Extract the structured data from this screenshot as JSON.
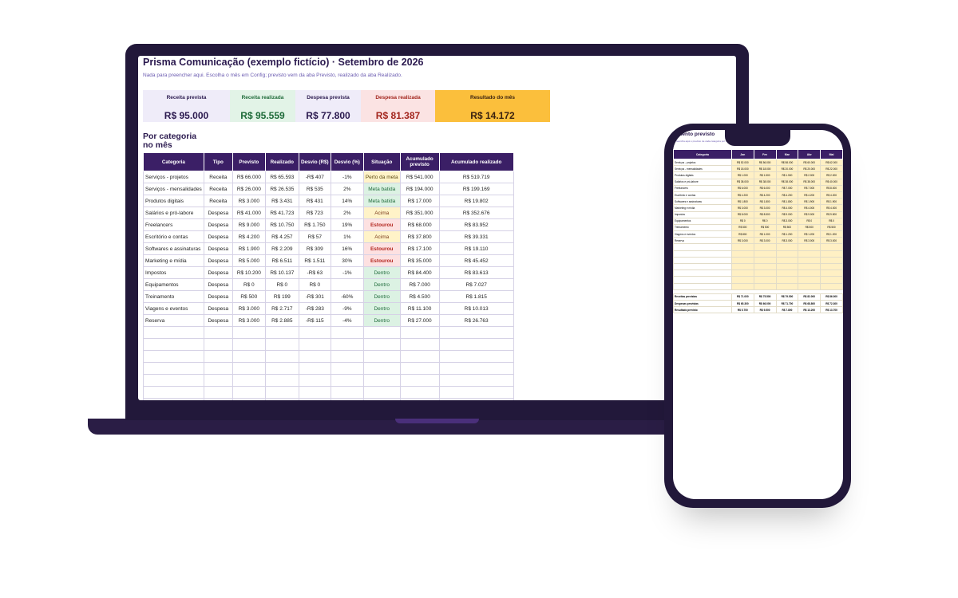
{
  "laptop": {
    "title": "Prisma Comunicação (exemplo fictício) · Setembro de 2026",
    "subtitle": "Nada para preencher aqui. Escolha o mês em Config; previsto vem da aba Previsto, realizado da aba Realizado.",
    "kpis": [
      {
        "label": "Receita prevista",
        "value": "R$ 95.000"
      },
      {
        "label": "Receita realizada",
        "value": "R$ 95.559"
      },
      {
        "label": "Despesa prevista",
        "value": "R$ 77.800"
      },
      {
        "label": "Despesa realizada",
        "value": "R$ 81.387"
      },
      {
        "label": "Resultado do mês",
        "value": "R$ 14.172"
      }
    ],
    "section_title": [
      "Por categoria",
      "no mês"
    ],
    "table": {
      "columns": [
        "Categoria",
        "Tipo",
        "Previsto",
        "Realizado",
        "Desvio (R$)",
        "Desvio (%)",
        "Situação",
        "Acumulado previsto",
        "Acumulado realizado"
      ],
      "rows": [
        [
          "Serviços - projetos",
          "Receita",
          "R$ 66.000",
          "R$ 65.593",
          "-R$ 407",
          "-1%",
          "Perto da meta",
          "R$ 541.000",
          "R$ 519.719"
        ],
        [
          "Serviços - mensalidades",
          "Receita",
          "R$ 26.000",
          "R$ 26.535",
          "R$ 535",
          "2%",
          "Meta batida",
          "R$ 194.000",
          "R$ 199.169"
        ],
        [
          "Produtos digitais",
          "Receita",
          "R$ 3.000",
          "R$ 3.431",
          "R$ 431",
          "14%",
          "Meta batida",
          "R$ 17.000",
          "R$ 19.802"
        ],
        [
          "Salários e pró-labore",
          "Despesa",
          "R$ 41.000",
          "R$ 41.723",
          "R$ 723",
          "2%",
          "Acima",
          "R$ 351.000",
          "R$ 352.676"
        ],
        [
          "Freelancers",
          "Despesa",
          "R$ 9.000",
          "R$ 10.750",
          "R$ 1.750",
          "19%",
          "Estourou",
          "R$ 68.000",
          "R$ 83.952"
        ],
        [
          "Escritório e contas",
          "Despesa",
          "R$ 4.200",
          "R$ 4.257",
          "R$ 57",
          "1%",
          "Acima",
          "R$ 37.800",
          "R$ 39.331"
        ],
        [
          "Softwares e assinaturas",
          "Despesa",
          "R$ 1.900",
          "R$ 2.209",
          "R$ 309",
          "16%",
          "Estourou",
          "R$ 17.100",
          "R$ 19.110"
        ],
        [
          "Marketing e mídia",
          "Despesa",
          "R$ 5.000",
          "R$ 6.511",
          "R$ 1.511",
          "30%",
          "Estourou",
          "R$ 35.000",
          "R$ 45.452"
        ],
        [
          "Impostos",
          "Despesa",
          "R$ 10.200",
          "R$ 10.137",
          "-R$ 63",
          "-1%",
          "Dentro",
          "R$ 84.400",
          "R$ 83.613"
        ],
        [
          "Equipamentos",
          "Despesa",
          "R$ 0",
          "R$ 0",
          "R$ 0",
          null,
          "Dentro",
          "R$ 7.000",
          "R$ 7.027"
        ],
        [
          "Treinamento",
          "Despesa",
          "R$ 500",
          "R$ 199",
          "-R$ 301",
          "-60%",
          "Dentro",
          "R$ 4.500",
          "R$ 1.815"
        ],
        [
          "Viagens e eventos",
          "Despesa",
          "R$ 3.000",
          "R$ 2.717",
          "-R$ 283",
          "-9%",
          "Dentro",
          "R$ 11.100",
          "R$ 10.013"
        ],
        [
          "Reserva",
          "Despesa",
          "R$ 3.000",
          "R$ 2.885",
          "-R$ 115",
          "-4%",
          "Dentro",
          "R$ 27.000",
          "R$ 26.763"
        ]
      ],
      "status_colors": [
        {
          "bg": "#fff3c8",
          "fg": "#5b4a12"
        },
        {
          "bg": "#dcf2e3",
          "fg": "#1f6b3a"
        },
        {
          "bg": "#dcf2e3",
          "fg": "#1f6b3a"
        },
        {
          "bg": "#fff3c8",
          "fg": "#7a3b1c"
        },
        {
          "bg": "#fde1e1",
          "fg": "#b3261e"
        },
        {
          "bg": "#fff3c8",
          "fg": "#7a3b1c"
        },
        {
          "bg": "#fde1e1",
          "fg": "#b3261e"
        },
        {
          "bg": "#fde1e1",
          "fg": "#b3261e"
        },
        {
          "bg": "#dcf2e3",
          "fg": "#1f6b3a"
        },
        {
          "bg": "#dcf2e3",
          "fg": "#1f6b3a"
        },
        {
          "bg": "#dcf2e3",
          "fg": "#1f6b3a"
        },
        {
          "bg": "#dcf2e3",
          "fg": "#1f6b3a"
        },
        {
          "bg": "#dcf2e3",
          "fg": "#1f6b3a"
        }
      ]
    }
  },
  "phone": {
    "title": "amento previsto",
    "subtitle": "Preencha aqui o previsto de cada categoria por mês.",
    "table": {
      "columns": [
        "Categoria",
        "Jan",
        "Fev",
        "Mar",
        "Abr",
        "Mai"
      ],
      "rows": [
        [
          "Serviços - projetos",
          "R$ 52.000",
          "R$ 56.000",
          "R$ 58.000",
          "R$ 60.000",
          "R$ 62.000"
        ],
        [
          "Serviços - mensalidades",
          "R$ 18.000",
          "R$ 18.000",
          "R$ 20.000",
          "R$ 20.000",
          "R$ 22.000"
        ],
        [
          "Produtos digitais",
          "R$ 1.000",
          "R$ 1.500",
          "R$ 1.500",
          "R$ 2.000",
          "R$ 2.000"
        ],
        [
          "Salários e pró-labore",
          "R$ 38.000",
          "R$ 38.000",
          "R$ 38.000",
          "R$ 38.000",
          "R$ 40.000"
        ],
        [
          "Freelancers",
          "R$ 6.000",
          "R$ 6.000",
          "R$ 7.000",
          "R$ 7.000",
          "R$ 8.000"
        ],
        [
          "Escritório e contas",
          "R$ 4.200",
          "R$ 4.200",
          "R$ 4.200",
          "R$ 4.200",
          "R$ 4.200"
        ],
        [
          "Softwares e assinaturas",
          "R$ 1.800",
          "R$ 1.800",
          "R$ 1.800",
          "R$ 1.900",
          "R$ 1.900"
        ],
        [
          "Marketing e mídia",
          "R$ 3.000",
          "R$ 3.000",
          "R$ 4.000",
          "R$ 4.000",
          "R$ 4.000"
        ],
        [
          "Impostos",
          "R$ 8.000",
          "R$ 8.500",
          "R$ 9.000",
          "R$ 9.000",
          "R$ 9.500"
        ],
        [
          "Equipamentos",
          "R$ 0",
          "R$ 0",
          "R$ 3.000",
          "R$ 0",
          "R$ 0"
        ],
        [
          "Treinamento",
          "R$ 500",
          "R$ 500",
          "R$ 500",
          "R$ 500",
          "R$ 500"
        ],
        [
          "Viagens e eventos",
          "R$ 800",
          "R$ 1.000",
          "R$ 1.200",
          "R$ 1.200",
          "R$ 1.200"
        ],
        [
          "Reserva",
          "R$ 3.000",
          "R$ 3.000",
          "R$ 3.000",
          "R$ 3.000",
          "R$ 3.000"
        ]
      ],
      "totals": [
        [
          "Receitas previstas",
          "R$ 71.000",
          "R$ 75.500",
          "R$ 79.500",
          "R$ 82.000",
          "R$ 86.000"
        ],
        [
          "Despesas previstas",
          "R$ 65.300",
          "R$ 66.000",
          "R$ 71.700",
          "R$ 68.800",
          "R$ 72.300"
        ],
        [
          "Resultado previsto",
          "R$ 5.700",
          "R$ 9.500",
          "R$ 7.800",
          "R$ 13.200",
          "R$ 13.700"
        ]
      ]
    }
  }
}
